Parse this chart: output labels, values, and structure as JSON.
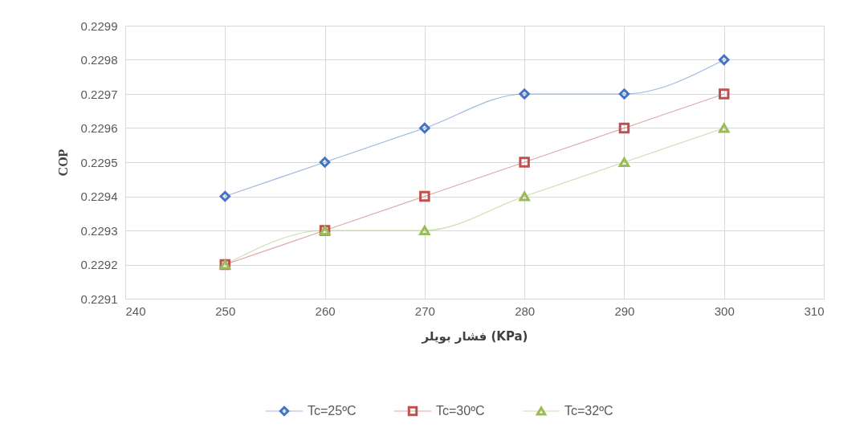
{
  "chart_data": {
    "type": "line",
    "xlabel": "فشار بویلر (KPa)",
    "ylabel": "COP",
    "x": [
      250,
      260,
      270,
      280,
      290,
      300
    ],
    "series": [
      {
        "name": "Tc=25ºC",
        "color": "#4472c4",
        "marker": "diamond",
        "values": [
          0.2294,
          0.2295,
          0.2296,
          0.2297,
          0.2297,
          0.2298
        ]
      },
      {
        "name": "Tc=30ºC",
        "color": "#c0504d",
        "marker": "square",
        "values": [
          0.2292,
          0.2293,
          0.2294,
          0.2295,
          0.2296,
          0.2297
        ]
      },
      {
        "name": "Tc=32ºC",
        "color": "#9bbb59",
        "marker": "triangle",
        "values": [
          0.2292,
          0.2293,
          0.2293,
          0.2294,
          0.2295,
          0.2296
        ]
      }
    ],
    "xlim": [
      240,
      310
    ],
    "xticks": [
      240,
      250,
      260,
      270,
      280,
      290,
      300,
      310
    ],
    "ylim": [
      0.2291,
      0.2299
    ],
    "yticks": [
      0.2291,
      0.2292,
      0.2293,
      0.2294,
      0.2295,
      0.2296,
      0.2297,
      0.2298,
      0.2299
    ],
    "grid": true,
    "legend": "bottom",
    "line_style": "solid"
  }
}
